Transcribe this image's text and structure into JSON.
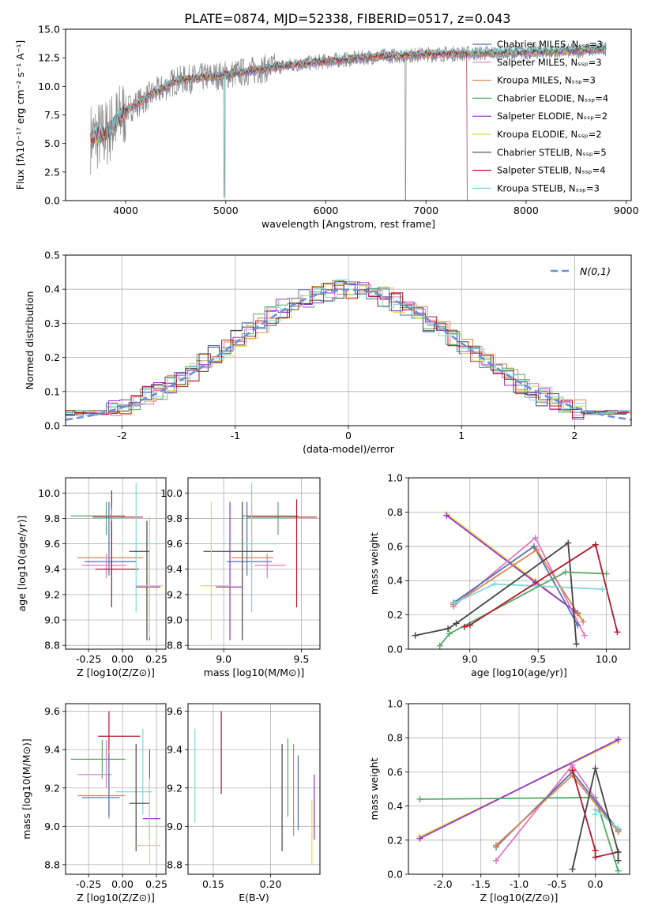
{
  "figure": {
    "title": "PLATE=0874, MJD=52338, FIBERID=0517, z=0.043"
  },
  "chart_data": [
    {
      "id": "spectrum",
      "type": "line",
      "xlabel": "wavelength [Angstrom, rest frame]",
      "ylabel": "Flux [fλ10⁻¹⁷ erg cm⁻² s⁻¹ A⁻¹]",
      "xlim": [
        3400,
        9050
      ],
      "ylim": [
        0,
        15
      ],
      "xticks": [
        4000,
        5000,
        6000,
        7000,
        8000,
        9000
      ],
      "yticks": [
        0.0,
        2.5,
        5.0,
        7.5,
        10.0,
        12.5,
        15.0
      ],
      "continuum": {
        "x": [
          3650,
          3800,
          4000,
          4500,
          5000,
          5500,
          6000,
          6500,
          7000,
          7500,
          8000,
          8500,
          8800
        ],
        "y": [
          5.5,
          5.8,
          7.9,
          10.5,
          11.0,
          11.7,
          12.2,
          12.6,
          12.8,
          12.9,
          13.0,
          13.1,
          13.3
        ]
      },
      "legend": [
        {
          "label": "Chabrier MILES, N_SSP=3",
          "color": "#4c72b0"
        },
        {
          "label": "Salpeter MILES, N_SSP=3",
          "color": "#e377c2"
        },
        {
          "label": "Kroupa MILES, N_SSP=3",
          "color": "#dd8452"
        },
        {
          "label": "Chabrier ELODIE, N_SSP=4",
          "color": "#55a868"
        },
        {
          "label": "Salpeter ELODIE, N_SSP=2",
          "color": "#9b30c7"
        },
        {
          "label": "Kroupa ELODIE, N_SSP=2",
          "color": "#dbdb5b"
        },
        {
          "label": "Chabrier STELIB, N_SSP=5",
          "color": "#444444"
        },
        {
          "label": "Salpeter STELIB, N_SSP=4",
          "color": "#b2182b"
        },
        {
          "label": "Kroupa STELIB, N_SSP=3",
          "color": "#7fd6d9"
        }
      ]
    },
    {
      "id": "residuals",
      "type": "line",
      "xlabel": "(data-model)/error",
      "ylabel": "Normed distribution",
      "xlim": [
        -2.5,
        2.5
      ],
      "ylim": [
        0,
        0.5
      ],
      "xticks": [
        -2,
        -1,
        0,
        1,
        2
      ],
      "yticks": [
        0.0,
        0.1,
        0.2,
        0.3,
        0.4,
        0.5
      ],
      "grid": true,
      "legend_label": "N(0,1)",
      "legend_position": "top-right",
      "gaussian_color": "#6a8fd8"
    },
    {
      "id": "age_vs_Z",
      "type": "scatter",
      "xlabel": "Z [log10(Z/Z⊙)]",
      "ylabel": "age  [log10(age/yr)]",
      "xlim": [
        -0.42,
        0.32
      ],
      "ylim": [
        8.77,
        10.12
      ],
      "xticks": [
        -0.25,
        0.0,
        0.25
      ],
      "yticks": [
        8.8,
        9.0,
        9.2,
        9.4,
        9.6,
        9.8,
        10.0
      ],
      "points": [
        {
          "x": -0.12,
          "y": 9.82,
          "xlo": -0.38,
          "xhi": 0.02,
          "ylo": 9.67,
          "yhi": 9.93,
          "color": "#55a868"
        },
        {
          "x": -0.08,
          "y": 9.81,
          "xlo": -0.22,
          "xhi": 0.15,
          "ylo": 9.35,
          "yhi": 10.02,
          "color": "#b2182b"
        },
        {
          "x": -0.08,
          "y": 9.49,
          "xlo": -0.33,
          "xhi": 0.15,
          "ylo": 9.35,
          "yhi": 9.88,
          "color": "#dd8452"
        },
        {
          "x": -0.1,
          "y": 9.46,
          "xlo": -0.28,
          "xhi": 0.1,
          "ylo": 9.35,
          "yhi": 9.93,
          "color": "#4c72b0"
        },
        {
          "x": -0.12,
          "y": 9.43,
          "xlo": -0.3,
          "xhi": 0.03,
          "ylo": 9.33,
          "yhi": 9.52,
          "color": "#e377c2"
        },
        {
          "x": -0.08,
          "y": 9.4,
          "xlo": -0.2,
          "xhi": 0.12,
          "ylo": 9.1,
          "yhi": 9.78,
          "color": "#b2182b"
        },
        {
          "x": 0.1,
          "y": 9.6,
          "xlo": -0.05,
          "xhi": 0.28,
          "ylo": 9.06,
          "yhi": 10.08,
          "color": "#7fd6d9"
        },
        {
          "x": 0.18,
          "y": 9.54,
          "xlo": 0.05,
          "xhi": 0.2,
          "ylo": 8.84,
          "yhi": 9.78,
          "color": "#444444"
        },
        {
          "x": 0.2,
          "y": 9.26,
          "xlo": 0.1,
          "xhi": 0.28,
          "ylo": 8.84,
          "yhi": 9.54,
          "color": "#9b30c7"
        },
        {
          "x": 0.2,
          "y": 9.27,
          "xlo": 0.1,
          "xhi": 0.3,
          "ylo": 8.86,
          "yhi": 9.82,
          "color": "#dbdb5b"
        }
      ]
    },
    {
      "id": "age_vs_mass",
      "type": "scatter",
      "xlabel": "mass [log10(M/M⊙)]",
      "ylabel": "",
      "xlim": [
        8.77,
        9.62
      ],
      "ylim": [
        8.77,
        10.12
      ],
      "xticks": [
        9.0,
        9.5
      ],
      "yticks": [
        8.8,
        9.0,
        9.2,
        9.4,
        9.6,
        9.8,
        10.0
      ],
      "points": [
        {
          "x": 9.35,
          "y": 9.82,
          "xlo": 9.12,
          "xhi": 9.48,
          "ylo": 9.67,
          "yhi": 9.93,
          "color": "#55a868"
        },
        {
          "x": 9.47,
          "y": 9.81,
          "xlo": 9.15,
          "xhi": 9.6,
          "ylo": 9.1,
          "yhi": 9.95,
          "color": "#b2182b"
        },
        {
          "x": 9.18,
          "y": 9.49,
          "xlo": 9.05,
          "xhi": 9.32,
          "ylo": 9.35,
          "yhi": 9.93,
          "color": "#dd8452"
        },
        {
          "x": 9.15,
          "y": 9.46,
          "xlo": 9.02,
          "xhi": 9.31,
          "ylo": 9.35,
          "yhi": 9.93,
          "color": "#4c72b0"
        },
        {
          "x": 9.28,
          "y": 9.43,
          "xlo": 9.2,
          "xhi": 9.4,
          "ylo": 9.33,
          "yhi": 9.52,
          "color": "#e377c2"
        },
        {
          "x": 9.18,
          "y": 9.6,
          "xlo": 9.03,
          "xhi": 9.36,
          "ylo": 9.06,
          "yhi": 10.08,
          "color": "#7fd6d9"
        },
        {
          "x": 9.12,
          "y": 9.54,
          "xlo": 8.87,
          "xhi": 9.32,
          "ylo": 8.84,
          "yhi": 9.93,
          "color": "#444444"
        },
        {
          "x": 9.04,
          "y": 9.26,
          "xlo": 8.95,
          "xhi": 9.12,
          "ylo": 8.84,
          "yhi": 9.93,
          "color": "#9b30c7"
        },
        {
          "x": 8.92,
          "y": 9.27,
          "xlo": 8.85,
          "xhi": 9.04,
          "ylo": 8.84,
          "yhi": 9.93,
          "color": "#dbdb5b"
        }
      ]
    },
    {
      "id": "mass_weight_vs_age",
      "type": "line",
      "xlabel": "age  [log10(age/yr)]",
      "ylabel": "mass weight",
      "xlim": [
        8.55,
        10.17
      ],
      "ylim": [
        0,
        1
      ],
      "xticks": [
        9.0,
        9.5,
        10.0
      ],
      "yticks": [
        0.0,
        0.2,
        0.4,
        0.6,
        0.8,
        1.0
      ],
      "series": [
        {
          "color": "#dbdb5b",
          "x": [
            8.83,
            9.48,
            9.8
          ],
          "y": [
            0.79,
            0.4,
            0.2
          ]
        },
        {
          "color": "#9b30c7",
          "x": [
            8.83,
            9.48,
            9.79
          ],
          "y": [
            0.78,
            0.39,
            0.21
          ]
        },
        {
          "color": "#e377c2",
          "x": [
            8.88,
            9.48,
            9.84
          ],
          "y": [
            0.25,
            0.65,
            0.08
          ]
        },
        {
          "color": "#4c72b0",
          "x": [
            8.88,
            9.47,
            9.79
          ],
          "y": [
            0.27,
            0.6,
            0.14
          ]
        },
        {
          "color": "#dd8452",
          "x": [
            8.88,
            9.49,
            9.83
          ],
          "y": [
            0.26,
            0.58,
            0.16
          ]
        },
        {
          "color": "#7fd6d9",
          "x": [
            8.89,
            9.18,
            9.97
          ],
          "y": [
            0.27,
            0.38,
            0.35
          ]
        },
        {
          "color": "#444444",
          "x": [
            8.6,
            8.84,
            8.9,
            9.72,
            9.78
          ],
          "y": [
            0.08,
            0.12,
            0.15,
            0.62,
            0.03
          ]
        },
        {
          "color": "#55a868",
          "x": [
            8.78,
            8.85,
            9.7,
            10.0
          ],
          "y": [
            0.02,
            0.09,
            0.45,
            0.44
          ]
        },
        {
          "color": "#b2182b",
          "x": [
            8.96,
            9.0,
            9.92,
            10.08
          ],
          "y": [
            0.13,
            0.14,
            0.61,
            0.1
          ]
        }
      ]
    },
    {
      "id": "mass_vs_Z",
      "type": "scatter",
      "xlabel": "Z [log10(Z/Z⊙)]",
      "ylabel": "mass [log10(M/M⊙)]",
      "xlim": [
        -0.42,
        0.32
      ],
      "ylim": [
        8.75,
        9.64
      ],
      "xticks": [
        -0.25,
        0.0,
        0.25
      ],
      "yticks": [
        8.8,
        9.0,
        9.2,
        9.4,
        9.6
      ],
      "points": [
        {
          "x": -0.1,
          "y": 9.47,
          "xlo": -0.18,
          "xhi": 0.13,
          "ylo": 9.35,
          "yhi": 9.6,
          "color": "#b2182b"
        },
        {
          "x": -0.15,
          "y": 9.35,
          "xlo": -0.38,
          "xhi": 0.02,
          "ylo": 9.25,
          "yhi": 9.45,
          "color": "#55a868"
        },
        {
          "x": -0.12,
          "y": 9.27,
          "xlo": -0.33,
          "xhi": -0.08,
          "ylo": 9.2,
          "yhi": 9.45,
          "color": "#e377c2"
        },
        {
          "x": 0.15,
          "y": 9.18,
          "xlo": -0.05,
          "xhi": 0.22,
          "ylo": 9.06,
          "yhi": 9.51,
          "color": "#7fd6d9"
        },
        {
          "x": -0.1,
          "y": 9.16,
          "xlo": -0.33,
          "xhi": 0.02,
          "ylo": 9.04,
          "yhi": 9.4,
          "color": "#dd8452"
        },
        {
          "x": -0.1,
          "y": 9.15,
          "xlo": -0.3,
          "xhi": -0.02,
          "ylo": 9.05,
          "yhi": 9.38,
          "color": "#4c72b0"
        },
        {
          "x": 0.1,
          "y": 9.12,
          "xlo": 0.05,
          "xhi": 0.2,
          "ylo": 8.87,
          "yhi": 9.43,
          "color": "#444444"
        },
        {
          "x": 0.2,
          "y": 9.04,
          "xlo": 0.15,
          "xhi": 0.28,
          "ylo": 8.93,
          "yhi": 9.4,
          "color": "#9b30c7"
        },
        {
          "x": 0.2,
          "y": 8.9,
          "xlo": 0.1,
          "xhi": 0.28,
          "ylo": 8.8,
          "yhi": 9.25,
          "color": "#dbdb5b"
        }
      ]
    },
    {
      "id": "mass_vs_ebv",
      "type": "scatter",
      "xlabel": "E(B-V)",
      "ylabel": "",
      "xlim": [
        0.128,
        0.243
      ],
      "ylim": [
        8.75,
        9.64
      ],
      "xticks": [
        0.15,
        0.2
      ],
      "yticks": [
        8.8,
        9.0,
        9.2,
        9.4,
        9.6
      ],
      "points": [
        {
          "x": 0.134,
          "y": 9.2,
          "ylo": 9.02,
          "yhi": 9.51,
          "color": "#7fd6d9"
        },
        {
          "x": 0.157,
          "y": 9.4,
          "ylo": 9.17,
          "yhi": 9.6,
          "color": "#b2182b"
        },
        {
          "x": 0.21,
          "y": 9.1,
          "ylo": 8.87,
          "yhi": 9.43,
          "color": "#444444"
        },
        {
          "x": 0.215,
          "y": 9.25,
          "ylo": 9.05,
          "yhi": 9.46,
          "color": "#55a868"
        },
        {
          "x": 0.22,
          "y": 9.2,
          "ylo": 8.95,
          "yhi": 9.43,
          "color": "#dd8452"
        },
        {
          "x": 0.224,
          "y": 9.15,
          "ylo": 8.98,
          "yhi": 9.37,
          "color": "#4c72b0"
        },
        {
          "x": 0.238,
          "y": 9.2,
          "ylo": 8.93,
          "yhi": 9.27,
          "color": "#9b30c7"
        },
        {
          "x": 0.236,
          "y": 8.95,
          "ylo": 8.8,
          "yhi": 9.14,
          "color": "#dbdb5b"
        }
      ]
    },
    {
      "id": "mass_weight_vs_Z",
      "type": "line",
      "xlabel": "Z [log10(Z/Z⊙)]",
      "ylabel": "mass weight",
      "xlim": [
        -2.45,
        0.45
      ],
      "ylim": [
        0,
        1
      ],
      "xticks": [
        -2.0,
        -1.5,
        -1.0,
        -0.5,
        0.0
      ],
      "yticks": [
        0.0,
        0.2,
        0.4,
        0.6,
        0.8,
        1.0
      ],
      "series": [
        {
          "color": "#dbdb5b",
          "x": [
            -2.3,
            0.3
          ],
          "y": [
            0.22,
            0.78
          ]
        },
        {
          "color": "#9b30c7",
          "x": [
            -2.3,
            0.3
          ],
          "y": [
            0.21,
            0.79
          ]
        },
        {
          "color": "#55a868",
          "x": [
            -2.3,
            0.0,
            0.3
          ],
          "y": [
            0.44,
            0.45,
            0.02
          ]
        },
        {
          "color": "#e377c2",
          "x": [
            -1.3,
            -0.3,
            0.3
          ],
          "y": [
            0.08,
            0.64,
            0.25
          ]
        },
        {
          "color": "#4c72b0",
          "x": [
            -1.3,
            -0.3,
            0.3
          ],
          "y": [
            0.16,
            0.6,
            0.26
          ]
        },
        {
          "color": "#dd8452",
          "x": [
            -1.3,
            -0.3,
            0.3
          ],
          "y": [
            0.17,
            0.58,
            0.25
          ]
        },
        {
          "color": "#7fd6d9",
          "x": [
            0.0,
            0.0,
            0.3
          ],
          "y": [
            0.35,
            0.38,
            0.27
          ]
        },
        {
          "color": "#b2182b",
          "x": [
            -0.3,
            0.0,
            0.0,
            0.3,
            0.3
          ],
          "y": [
            0.61,
            0.14,
            0.1,
            0.13,
            0.13
          ]
        },
        {
          "color": "#444444",
          "x": [
            -0.3,
            0.0,
            0.3,
            0.3
          ],
          "y": [
            0.03,
            0.62,
            0.13,
            0.08
          ]
        }
      ]
    }
  ]
}
